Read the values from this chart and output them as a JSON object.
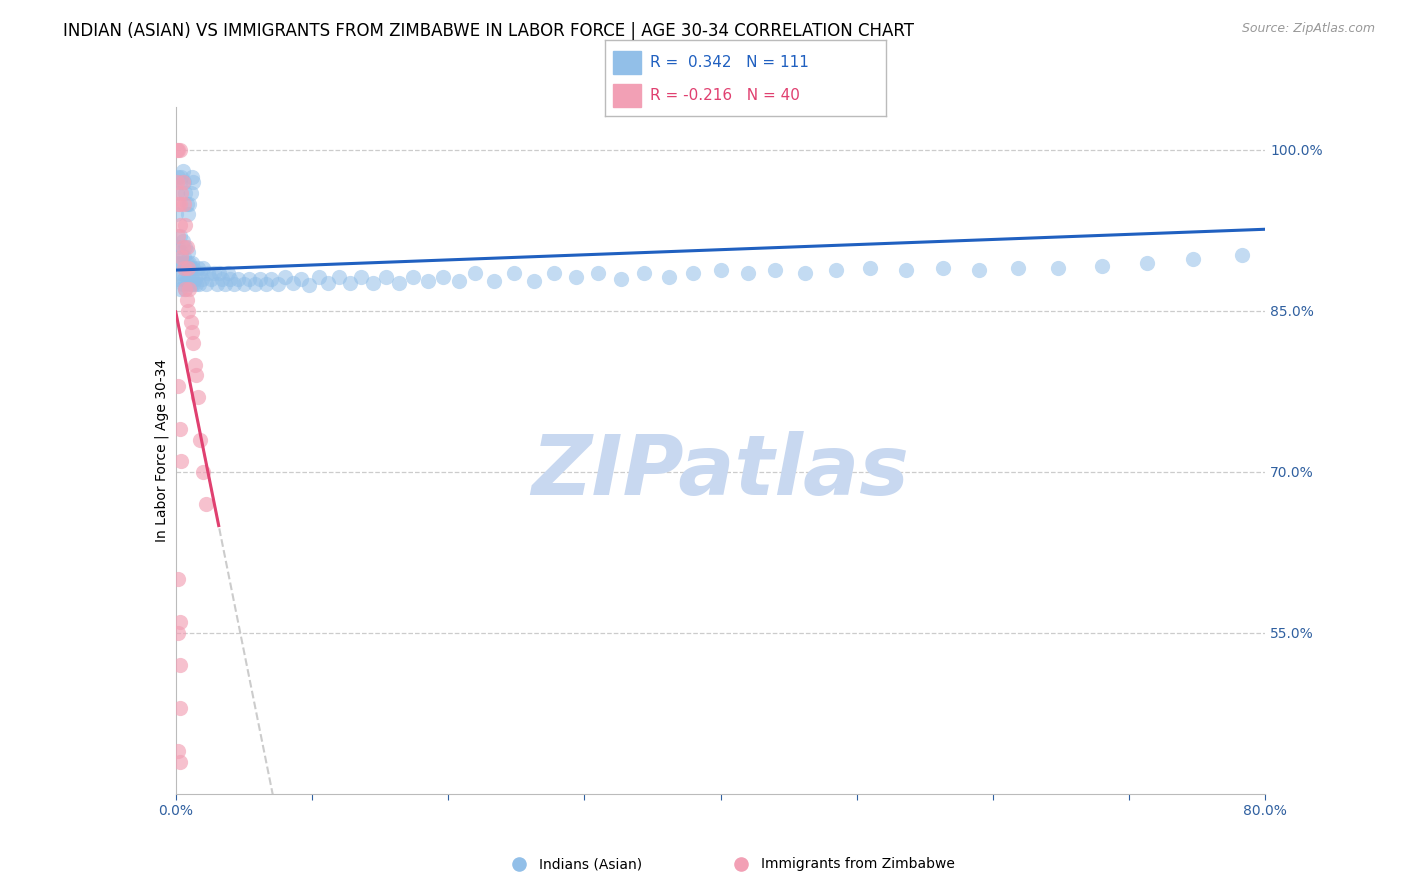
{
  "title": "INDIAN (ASIAN) VS IMMIGRANTS FROM ZIMBABWE IN LABOR FORCE | AGE 30-34 CORRELATION CHART",
  "source": "Source: ZipAtlas.com",
  "ylabel": "In Labor Force | Age 30-34",
  "xlim": [
    0.0,
    0.8
  ],
  "ylim": [
    0.4,
    1.04
  ],
  "yticks_right": [
    0.55,
    0.7,
    0.85,
    1.0
  ],
  "ytick_right_labels": [
    "55.0%",
    "70.0%",
    "85.0%",
    "100.0%"
  ],
  "r_blue": 0.342,
  "n_blue": 111,
  "r_pink": -0.216,
  "n_pink": 40,
  "blue_color": "#92BFE8",
  "pink_color": "#F2A0B5",
  "blue_line_color": "#2060C0",
  "pink_line_color": "#E04070",
  "watermark": "ZIPatlas",
  "watermark_color": "#C8D8F0",
  "title_fontsize": 12,
  "axis_label_fontsize": 10,
  "tick_fontsize": 10,
  "blue_x": [
    0.001,
    0.002,
    0.002,
    0.003,
    0.003,
    0.003,
    0.004,
    0.004,
    0.005,
    0.005,
    0.005,
    0.006,
    0.006,
    0.007,
    0.007,
    0.007,
    0.008,
    0.008,
    0.009,
    0.009,
    0.009,
    0.01,
    0.01,
    0.011,
    0.011,
    0.012,
    0.012,
    0.013,
    0.013,
    0.014,
    0.015,
    0.016,
    0.017,
    0.018,
    0.019,
    0.02,
    0.022,
    0.024,
    0.026,
    0.028,
    0.03,
    0.032,
    0.034,
    0.036,
    0.038,
    0.04,
    0.043,
    0.046,
    0.05,
    0.054,
    0.058,
    0.062,
    0.066,
    0.07,
    0.075,
    0.08,
    0.086,
    0.092,
    0.098,
    0.105,
    0.112,
    0.12,
    0.128,
    0.136,
    0.145,
    0.154,
    0.164,
    0.174,
    0.185,
    0.196,
    0.208,
    0.22,
    0.234,
    0.248,
    0.263,
    0.278,
    0.294,
    0.31,
    0.327,
    0.344,
    0.362,
    0.38,
    0.4,
    0.42,
    0.44,
    0.462,
    0.485,
    0.51,
    0.536,
    0.563,
    0.59,
    0.618,
    0.648,
    0.68,
    0.713,
    0.747,
    0.783,
    0.0,
    0.001,
    0.002,
    0.003,
    0.004,
    0.005,
    0.006,
    0.007,
    0.008,
    0.009,
    0.01,
    0.011,
    0.012,
    0.013
  ],
  "blue_y": [
    0.895,
    0.88,
    0.91,
    0.87,
    0.895,
    0.92,
    0.885,
    0.905,
    0.875,
    0.895,
    0.915,
    0.88,
    0.9,
    0.87,
    0.89,
    0.91,
    0.88,
    0.895,
    0.875,
    0.89,
    0.905,
    0.88,
    0.895,
    0.875,
    0.89,
    0.88,
    0.895,
    0.875,
    0.89,
    0.88,
    0.875,
    0.89,
    0.875,
    0.885,
    0.88,
    0.89,
    0.875,
    0.885,
    0.88,
    0.885,
    0.875,
    0.885,
    0.88,
    0.875,
    0.885,
    0.88,
    0.875,
    0.88,
    0.875,
    0.88,
    0.875,
    0.88,
    0.875,
    0.88,
    0.875,
    0.882,
    0.876,
    0.88,
    0.874,
    0.882,
    0.876,
    0.882,
    0.876,
    0.882,
    0.876,
    0.882,
    0.876,
    0.882,
    0.878,
    0.882,
    0.878,
    0.885,
    0.878,
    0.885,
    0.878,
    0.885,
    0.882,
    0.885,
    0.88,
    0.885,
    0.882,
    0.885,
    0.888,
    0.885,
    0.888,
    0.885,
    0.888,
    0.89,
    0.888,
    0.89,
    0.888,
    0.89,
    0.89,
    0.892,
    0.895,
    0.898,
    0.902,
    0.94,
    0.96,
    0.975,
    0.97,
    0.975,
    0.98,
    0.97,
    0.96,
    0.95,
    0.94,
    0.95,
    0.96,
    0.975,
    0.97
  ],
  "pink_x": [
    0.001,
    0.001,
    0.002,
    0.002,
    0.002,
    0.003,
    0.003,
    0.003,
    0.004,
    0.004,
    0.005,
    0.005,
    0.006,
    0.006,
    0.007,
    0.007,
    0.008,
    0.008,
    0.009,
    0.009,
    0.01,
    0.011,
    0.012,
    0.013,
    0.014,
    0.015,
    0.016,
    0.018,
    0.02,
    0.022,
    0.002,
    0.003,
    0.004,
    0.002,
    0.003,
    0.002,
    0.003,
    0.003,
    0.002,
    0.003
  ],
  "pink_y": [
    1.0,
    0.97,
    1.0,
    0.95,
    0.92,
    1.0,
    0.95,
    0.93,
    0.96,
    0.9,
    0.97,
    0.91,
    0.95,
    0.89,
    0.93,
    0.87,
    0.91,
    0.86,
    0.89,
    0.85,
    0.87,
    0.84,
    0.83,
    0.82,
    0.8,
    0.79,
    0.77,
    0.73,
    0.7,
    0.67,
    0.78,
    0.74,
    0.71,
    0.6,
    0.56,
    0.55,
    0.52,
    0.48,
    0.44,
    0.43
  ]
}
